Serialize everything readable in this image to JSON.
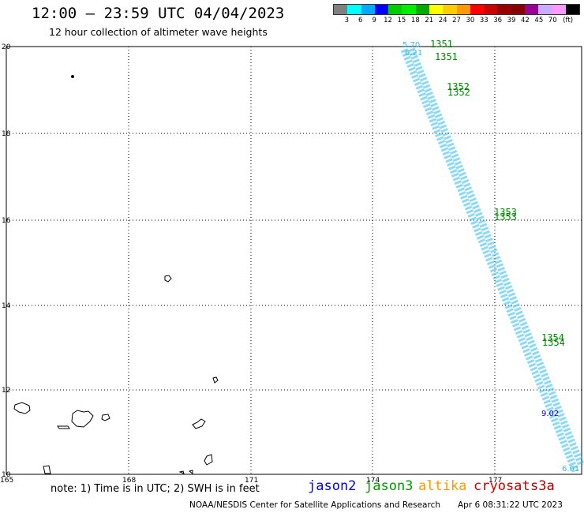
{
  "header": {
    "title": "12:00 – 23:59 UTC 04/04/2023",
    "subtitle": "12 hour collection of altimeter wave heights"
  },
  "colorbar": {
    "colors": [
      "#808080",
      "#00ffff",
      "#00aaff",
      "#0000ff",
      "#00cc00",
      "#00ee00",
      "#00aa00",
      "#ffff00",
      "#ffcc00",
      "#ff9900",
      "#ff0000",
      "#cc0000",
      "#990000",
      "#880000",
      "#990099",
      "#ccaaff",
      "#ff99ff",
      "#000000"
    ],
    "labels": [
      "3",
      "6",
      "9",
      "12",
      "15",
      "18",
      "21",
      "24",
      "27",
      "30",
      "33",
      "36",
      "39",
      "42",
      "45",
      "70",
      "(ft)"
    ]
  },
  "axes": {
    "lat_labels": [
      "20",
      "18",
      "16",
      "14",
      "12",
      "10"
    ],
    "lon_labels": [
      "165",
      "168",
      "171",
      "174",
      "177"
    ]
  },
  "tracks": {
    "color": "#33bbee",
    "values_shown": [
      "5.70",
      "6.21",
      "9.02",
      "6.01"
    ],
    "highlight_value": "9.02",
    "highlight_color": "#0000cc"
  },
  "track_times": {
    "color": "#008800",
    "labels": [
      "1351",
      "1351",
      "1352",
      "1352",
      "1353",
      "1353",
      "1354",
      "1354"
    ]
  },
  "footer": {
    "note": "note:  1) Time is in UTC;  2) SWH is in feet",
    "missions": [
      {
        "name": "jason2",
        "color": "#0000ff"
      },
      {
        "name": "jason3",
        "color": "#009900"
      },
      {
        "name": "altika",
        "color": "#ff9900"
      },
      {
        "name": "cryosat",
        "color": "#cc0000"
      },
      {
        "name": "s3a",
        "color": "#aa0000"
      }
    ],
    "credit": "NOAA/NESDIS Center for Satellite Applications and Research",
    "timestamp": "Apr  6 08:31:22 UTC 2023"
  }
}
